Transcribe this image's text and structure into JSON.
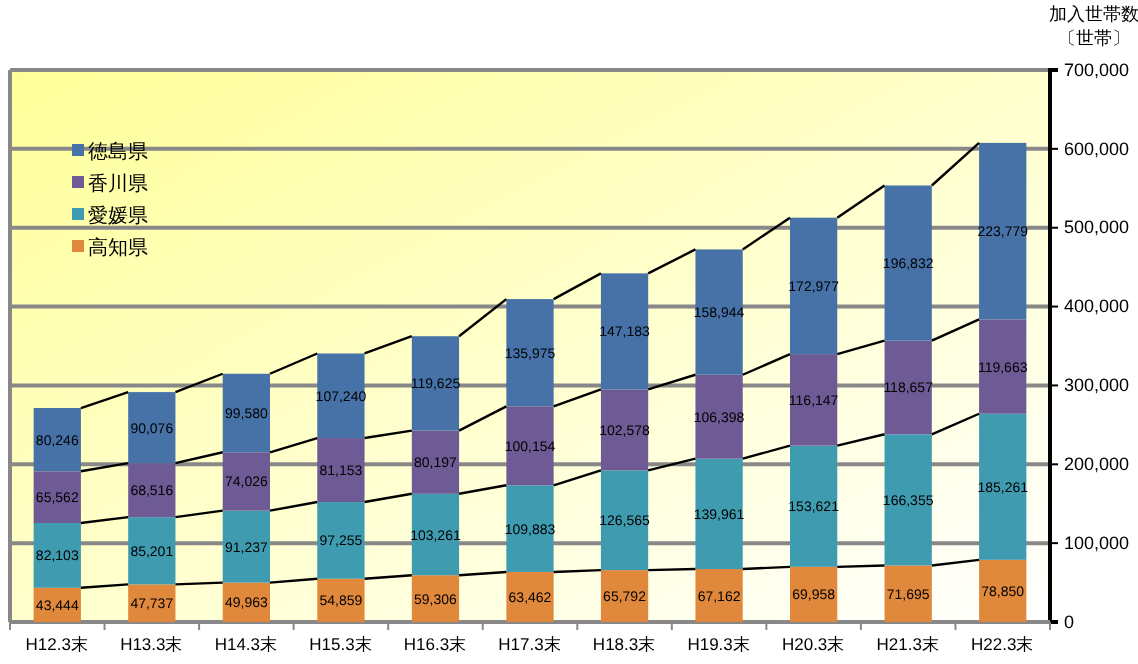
{
  "chart_data": {
    "type": "bar",
    "stacked": true,
    "ylabel": "加入世帯数〔世帯〕",
    "categories": [
      "H12.3末",
      "H13.3末",
      "H14.3末",
      "H15.3末",
      "H16.3末",
      "H17.3末",
      "H18.3末",
      "H19.3末",
      "H20.3末",
      "H21.3末",
      "H22.3末"
    ],
    "series": [
      {
        "name": "高知県",
        "color": "#e0883c",
        "values": [
          43444,
          47737,
          49963,
          54859,
          59306,
          63462,
          65792,
          67162,
          69958,
          71695,
          78850
        ],
        "value_labels": [
          "43,444",
          "47,737",
          "49,963",
          "54,859",
          "59,306",
          "63,462",
          "65,792",
          "67,162",
          "69,958",
          "71,695",
          "78,850"
        ]
      },
      {
        "name": "愛媛県",
        "color": "#3f9cb0",
        "values": [
          82103,
          85201,
          91237,
          97255,
          103261,
          109883,
          126565,
          139961,
          153621,
          166355,
          185261
        ],
        "value_labels": [
          "82,103",
          "85,201",
          "91,237",
          "97,255",
          "103,261",
          "109,883",
          "126,565",
          "139,961",
          "153,621",
          "166,355",
          "185,261"
        ]
      },
      {
        "name": "香川県",
        "color": "#6e5a94",
        "values": [
          65562,
          68516,
          74026,
          81153,
          80197,
          100154,
          102578,
          106398,
          116147,
          118657,
          119663
        ],
        "value_labels": [
          "65,562",
          "68,516",
          "74,026",
          "81,153",
          "80,197",
          "100,154",
          "102,578",
          "106,398",
          "116,147",
          "118,657",
          "119,663"
        ]
      },
      {
        "name": "徳島県",
        "color": "#4672a8",
        "values": [
          80246,
          90076,
          99580,
          107240,
          119625,
          135975,
          147183,
          158944,
          172977,
          196832,
          223779
        ],
        "value_labels": [
          "80,246",
          "90,076",
          "99,580",
          "107,240",
          "119,625",
          "135,975",
          "147,183",
          "158,944",
          "172,977",
          "196,832",
          "223,779"
        ]
      }
    ],
    "ylim": [
      0,
      700000
    ],
    "yticks": [
      0,
      {
        "value": 100000,
        "label": "100,000"
      },
      {
        "value": 200000,
        "label": "200,000"
      },
      {
        "value": 300000,
        "label": "300,000"
      },
      {
        "value": 400000,
        "label": "400,000"
      },
      {
        "value": 500000,
        "label": "500,000"
      },
      {
        "value": 600000,
        "label": "600,000"
      },
      {
        "value": 700000,
        "label": "700,000"
      }
    ],
    "grid": "y",
    "legend": "top left"
  }
}
